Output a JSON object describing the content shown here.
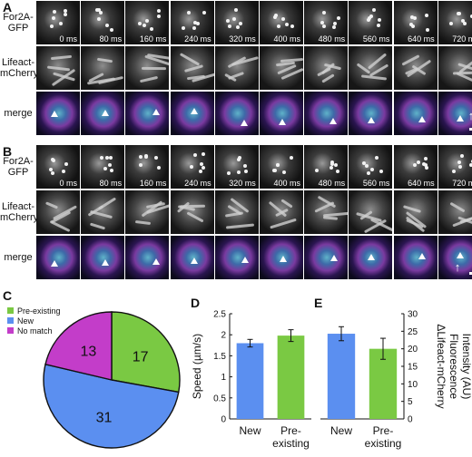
{
  "panels": {
    "A": {
      "label": "A",
      "rows": [
        {
          "label_line1": "For2A-",
          "label_line2": "GFP"
        },
        {
          "label_line1": "Lifeact-",
          "label_line2": "mCherry"
        },
        {
          "label_line1": "merge",
          "label_line2": ""
        }
      ],
      "times": [
        "0 ms",
        "80 ms",
        "160 ms",
        "240 ms",
        "320 ms",
        "400 ms",
        "480 ms",
        "560 ms",
        "640 ms",
        "720 ms"
      ]
    },
    "B": {
      "label": "B",
      "rows": [
        {
          "label_line1": "For2A-",
          "label_line2": "GFP"
        },
        {
          "label_line1": "Lifeact-",
          "label_line2": "mCherry"
        },
        {
          "label_line1": "merge",
          "label_line2": ""
        }
      ],
      "times": [
        "0 ms",
        "80 ms",
        "160 ms",
        "240 ms",
        "320 ms",
        "400 ms",
        "480 ms",
        "560 ms",
        "640 ms",
        "720 ms"
      ]
    },
    "C": {
      "label": "C"
    },
    "D": {
      "label": "D"
    },
    "E": {
      "label": "E"
    }
  },
  "colors": {
    "preexisting": "#7ac943",
    "new": "#5b8ff0",
    "nomatch": "#c33dc9"
  },
  "chart_data": [
    {
      "type": "pie",
      "panel": "C",
      "legend": [
        "Pre-existing",
        "New",
        "No match"
      ],
      "slices": [
        {
          "name": "Pre-existing",
          "value": 17,
          "label": "17"
        },
        {
          "name": "New",
          "value": 31,
          "label": "31"
        },
        {
          "name": "No match",
          "value": 13,
          "label": "13"
        }
      ]
    },
    {
      "type": "bar",
      "panel": "D",
      "categories": [
        "New",
        "Pre-\nexisting"
      ],
      "category_lines": [
        [
          "New"
        ],
        [
          "Pre-",
          "existing"
        ]
      ],
      "values": [
        1.8,
        1.98
      ],
      "errors": [
        0.09,
        0.14
      ],
      "ylabel": "Speed (µm/s)",
      "ylim": [
        0,
        2.5
      ],
      "yticks": [
        "0",
        "0.5",
        "1",
        "1.5",
        "2",
        "2.5"
      ],
      "ytick_values": [
        0,
        0.5,
        1,
        1.5,
        2,
        2.5
      ]
    },
    {
      "type": "bar",
      "panel": "E",
      "categories": [
        "New",
        "Pre-\nexisting"
      ],
      "category_lines": [
        [
          "New"
        ],
        [
          "Pre-",
          "existing"
        ]
      ],
      "values": [
        24.3,
        20.0
      ],
      "errors": [
        2.0,
        3.0
      ],
      "ylabel_lines": [
        "ΔLifeact-mCherry",
        "Fluorescence",
        "Intensity (AU)"
      ],
      "ylim": [
        0,
        30
      ],
      "yticks": [
        "0",
        "5",
        "10",
        "15",
        "20",
        "25",
        "30"
      ],
      "ytick_values": [
        0,
        5,
        10,
        15,
        20,
        25,
        30
      ],
      "axis_side": "right"
    }
  ]
}
